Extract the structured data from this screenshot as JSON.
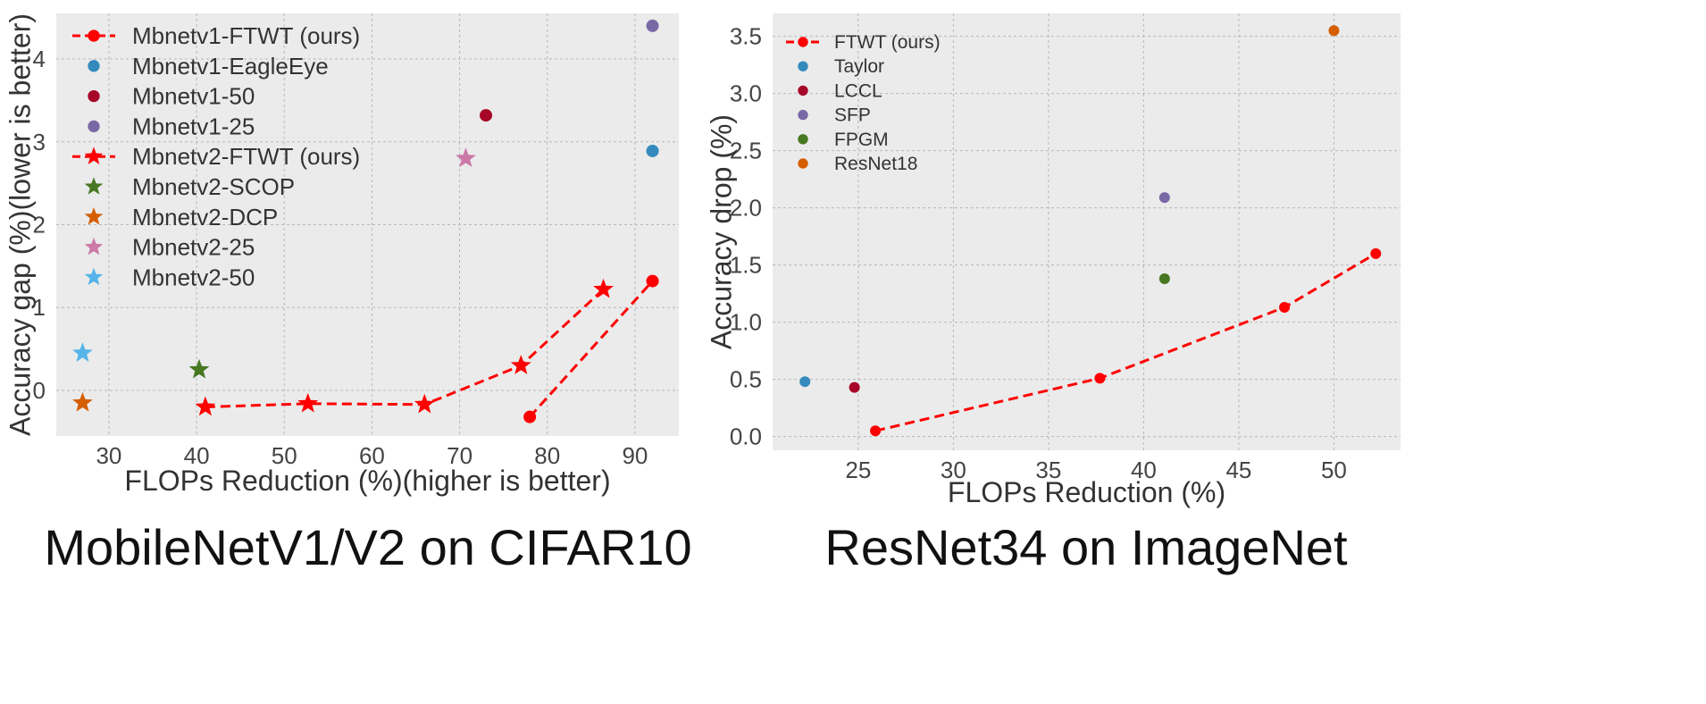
{
  "chart_data": [
    {
      "type": "scatter",
      "caption": "MobileNetV1/V2 on CIFAR10",
      "xlabel": "FLOPs Reduction (%)(higher is better)",
      "ylabel": "Accuracy gap (%)(lower is better)",
      "xlim": [
        24,
        95
      ],
      "ylim": [
        -0.55,
        4.55
      ],
      "xticks": [
        30,
        40,
        50,
        60,
        70,
        80,
        90
      ],
      "yticks": [
        0,
        1,
        2,
        3,
        4
      ],
      "grid": true,
      "legend_position": "upper-left",
      "series": [
        {
          "name": "Mbnetv1-FTWT (ours)",
          "marker": "circle",
          "line": true,
          "color": "#ff0000",
          "x": [
            78,
            92
          ],
          "y": [
            -0.32,
            1.32
          ]
        },
        {
          "name": "Mbnetv1-EagleEye",
          "marker": "circle",
          "line": false,
          "color": "#348abd",
          "x": [
            92
          ],
          "y": [
            2.89
          ]
        },
        {
          "name": "Mbnetv1-50",
          "marker": "circle",
          "line": false,
          "color": "#a60628",
          "x": [
            73
          ],
          "y": [
            3.32
          ]
        },
        {
          "name": "Mbnetv1-25",
          "marker": "circle",
          "line": false,
          "color": "#7a68a6",
          "x": [
            92
          ],
          "y": [
            4.4
          ]
        },
        {
          "name": "Mbnetv2-FTWT (ours)",
          "marker": "star",
          "line": true,
          "color": "#ff0000",
          "x": [
            41,
            52.7,
            66,
            77,
            86.4
          ],
          "y": [
            -0.2,
            -0.16,
            -0.17,
            0.3,
            1.22
          ]
        },
        {
          "name": "Mbnetv2-SCOP",
          "marker": "star",
          "line": false,
          "color": "#467821",
          "x": [
            40.3
          ],
          "y": [
            0.25
          ]
        },
        {
          "name": "Mbnetv2-DCP",
          "marker": "star",
          "line": false,
          "color": "#d55e00",
          "x": [
            27
          ],
          "y": [
            -0.15
          ]
        },
        {
          "name": "Mbnetv2-25",
          "marker": "star",
          "line": false,
          "color": "#cc79a7",
          "x": [
            70.7
          ],
          "y": [
            2.8
          ]
        },
        {
          "name": "Mbnetv2-50",
          "marker": "star",
          "line": false,
          "color": "#56b4e9",
          "x": [
            27
          ],
          "y": [
            0.45
          ]
        }
      ]
    },
    {
      "type": "scatter",
      "caption": "ResNet34 on ImageNet",
      "xlabel": "FLOPs Reduction (%)",
      "ylabel": "Accuracy drop (%)",
      "xlim": [
        20.5,
        53.5
      ],
      "ylim": [
        -0.12,
        3.7
      ],
      "xticks": [
        25,
        30,
        35,
        40,
        45,
        50
      ],
      "yticks": [
        0.0,
        0.5,
        1.0,
        1.5,
        2.0,
        2.5,
        3.0,
        3.5
      ],
      "grid": true,
      "legend_position": "upper-left",
      "series": [
        {
          "name": "FTWT (ours)",
          "marker": "circle",
          "line": true,
          "color": "#ff0000",
          "x": [
            25.9,
            37.7,
            47.4,
            52.2
          ],
          "y": [
            0.05,
            0.51,
            1.13,
            1.6
          ]
        },
        {
          "name": "Taylor",
          "marker": "circle",
          "line": false,
          "color": "#348abd",
          "x": [
            22.2
          ],
          "y": [
            0.48
          ]
        },
        {
          "name": "LCCL",
          "marker": "circle",
          "line": false,
          "color": "#a60628",
          "x": [
            24.8
          ],
          "y": [
            0.43
          ]
        },
        {
          "name": "SFP",
          "marker": "circle",
          "line": false,
          "color": "#7a68a6",
          "x": [
            41.1
          ],
          "y": [
            2.09
          ]
        },
        {
          "name": "FPGM",
          "marker": "circle",
          "line": false,
          "color": "#467821",
          "x": [
            41.1
          ],
          "y": [
            1.38
          ]
        },
        {
          "name": "ResNet18",
          "marker": "circle",
          "line": false,
          "color": "#d55e00",
          "x": [
            50
          ],
          "y": [
            3.55
          ]
        }
      ]
    }
  ]
}
